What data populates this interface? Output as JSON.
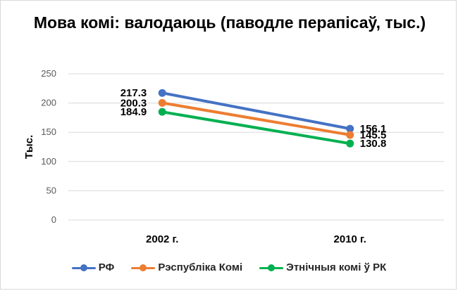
{
  "chart_data": {
    "type": "line",
    "title": "Мова комі: валодаюць (паводле перапісаў, тыс.)",
    "ylabel": "Тыс.",
    "xlabel": "",
    "categories": [
      "2002 г.",
      "2010 г."
    ],
    "ylim": [
      0,
      250
    ],
    "yticks": [
      0,
      50,
      100,
      150,
      200,
      250
    ],
    "grid": true,
    "legend_position": "bottom",
    "series": [
      {
        "name": "РФ",
        "values": [
          217.3,
          156.1
        ],
        "labels": [
          "217.3",
          "156.1"
        ],
        "color": "#4472C4"
      },
      {
        "name": "Рэспубліка Комі",
        "values": [
          200.3,
          145.5
        ],
        "labels": [
          "200.3",
          "145.5"
        ],
        "color": "#ED7D31"
      },
      {
        "name": "Этнічныя комі ў РК",
        "values": [
          184.9,
          130.8
        ],
        "labels": [
          "184.9",
          "130.8"
        ],
        "color": "#00B050"
      }
    ]
  }
}
